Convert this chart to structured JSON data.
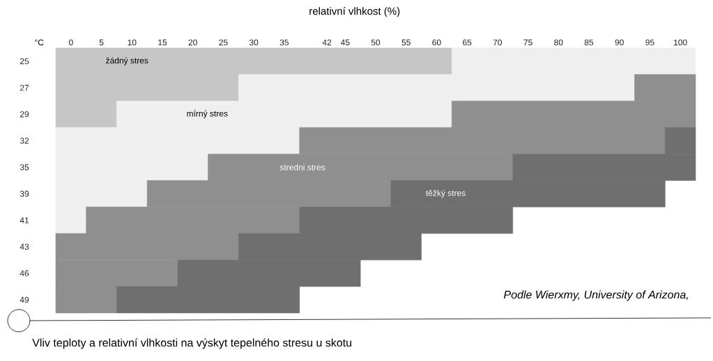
{
  "chart_data": {
    "type": "bar",
    "orientation": "horizontal",
    "title": "Vliv teploty a relativní vlhkosti na výskyt tepelného stresu u skotu",
    "xlabel": "relativní vlhkost (%)",
    "ylabel": "°C",
    "annotations": [
      "Podle Wierxmy, University of Arizona,"
    ],
    "categories": [
      "25",
      "27",
      "29",
      "32",
      "35",
      "39",
      "41",
      "43",
      "46",
      "49"
    ],
    "xlim": [
      -2.5,
      102.5
    ],
    "xticks": [
      0,
      5,
      10,
      15,
      20,
      25,
      30,
      35,
      42,
      45,
      50,
      55,
      60,
      65,
      70,
      75,
      80,
      85,
      90,
      95,
      100
    ],
    "series": [
      {
        "name": "žádný stres",
        "color": "#c6c6c6",
        "base": [
          -2.5,
          -2.5,
          -2.5,
          null,
          null,
          null,
          null,
          null,
          null,
          null
        ],
        "values": [
          65,
          30,
          10,
          null,
          null,
          null,
          null,
          null,
          null,
          null
        ]
      },
      {
        "name": "mírný stres",
        "color": "#efefef",
        "base": [
          62.5,
          27.5,
          7.5,
          -2.5,
          -2.5,
          -2.5,
          -2.5,
          null,
          null,
          null
        ],
        "values": [
          40,
          65,
          55,
          40,
          25,
          15,
          5,
          null,
          null,
          null
        ]
      },
      {
        "name": "stredni stres",
        "color": "#8f8f8f",
        "base": [
          null,
          92.5,
          62.5,
          37.5,
          22.5,
          12.5,
          2.5,
          -2.5,
          -2.5,
          -2.5
        ],
        "values": [
          null,
          10,
          40,
          60,
          50,
          40,
          35,
          30,
          20,
          10
        ]
      },
      {
        "name": "těžký stres",
        "color": "#6f6f6f",
        "base": [
          null,
          null,
          null,
          97.5,
          72.5,
          52.5,
          37.5,
          27.5,
          17.5,
          7.5
        ],
        "values": [
          null,
          null,
          null,
          5,
          30,
          45,
          35,
          30,
          30,
          30
        ]
      }
    ]
  }
}
